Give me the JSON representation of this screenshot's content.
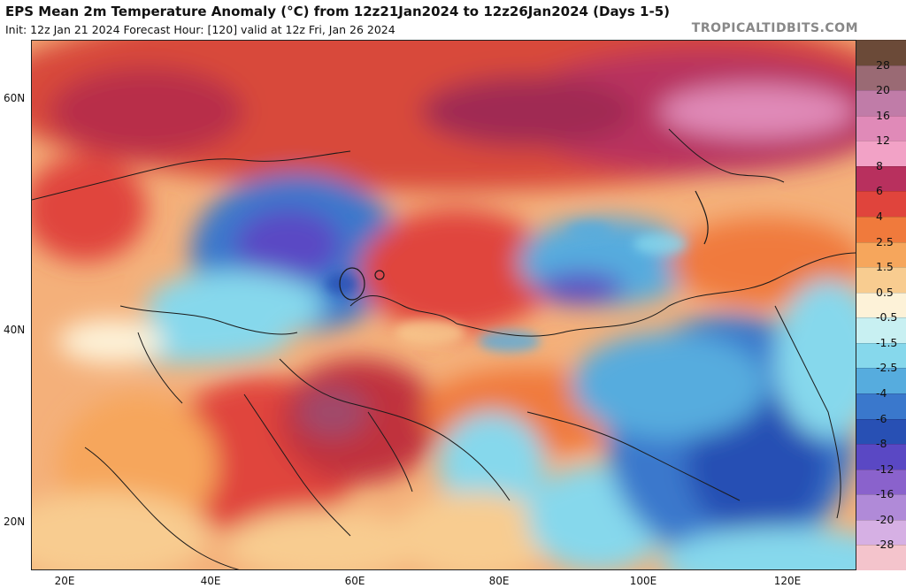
{
  "header": {
    "title": "EPS Mean 2m Temperature Anomaly (°C) from 12z21Jan2024 to 12z26Jan2024 (Days 1-5)",
    "subtitle": "Init: 12z Jan 21 2024   Forecast Hour: [120]   valid at 12z Fri, Jan 26 2024",
    "brand": "TROPICALTIDBITS.COM"
  },
  "map": {
    "lat_labels": [
      "60N",
      "40N",
      "20N"
    ],
    "lon_labels": [
      "20E",
      "40E",
      "60E",
      "80E",
      "100E",
      "120E"
    ]
  },
  "colorbar": {
    "labels": [
      "28",
      "20",
      "16",
      "12",
      "8",
      "6",
      "4",
      "2.5",
      "1.5",
      "0.5",
      "-0.5",
      "-1.5",
      "-2.5",
      "-4",
      "-6",
      "-8",
      "-12",
      "-16",
      "-20",
      "-28"
    ],
    "colors": [
      "#6b4a38",
      "#9a6a74",
      "#c07ca8",
      "#e08ab8",
      "#f2a2c6",
      "#b8305e",
      "#e0443c",
      "#f07a3c",
      "#f6a65c",
      "#f8cc90",
      "#fdf2d8",
      "#c8f0f2",
      "#86d8ec",
      "#56acde",
      "#3a78cc",
      "#2850b4",
      "#5a48c4",
      "#8a62cc",
      "#b08ad8",
      "#d6b0e4",
      "#f4c4cc"
    ]
  }
}
